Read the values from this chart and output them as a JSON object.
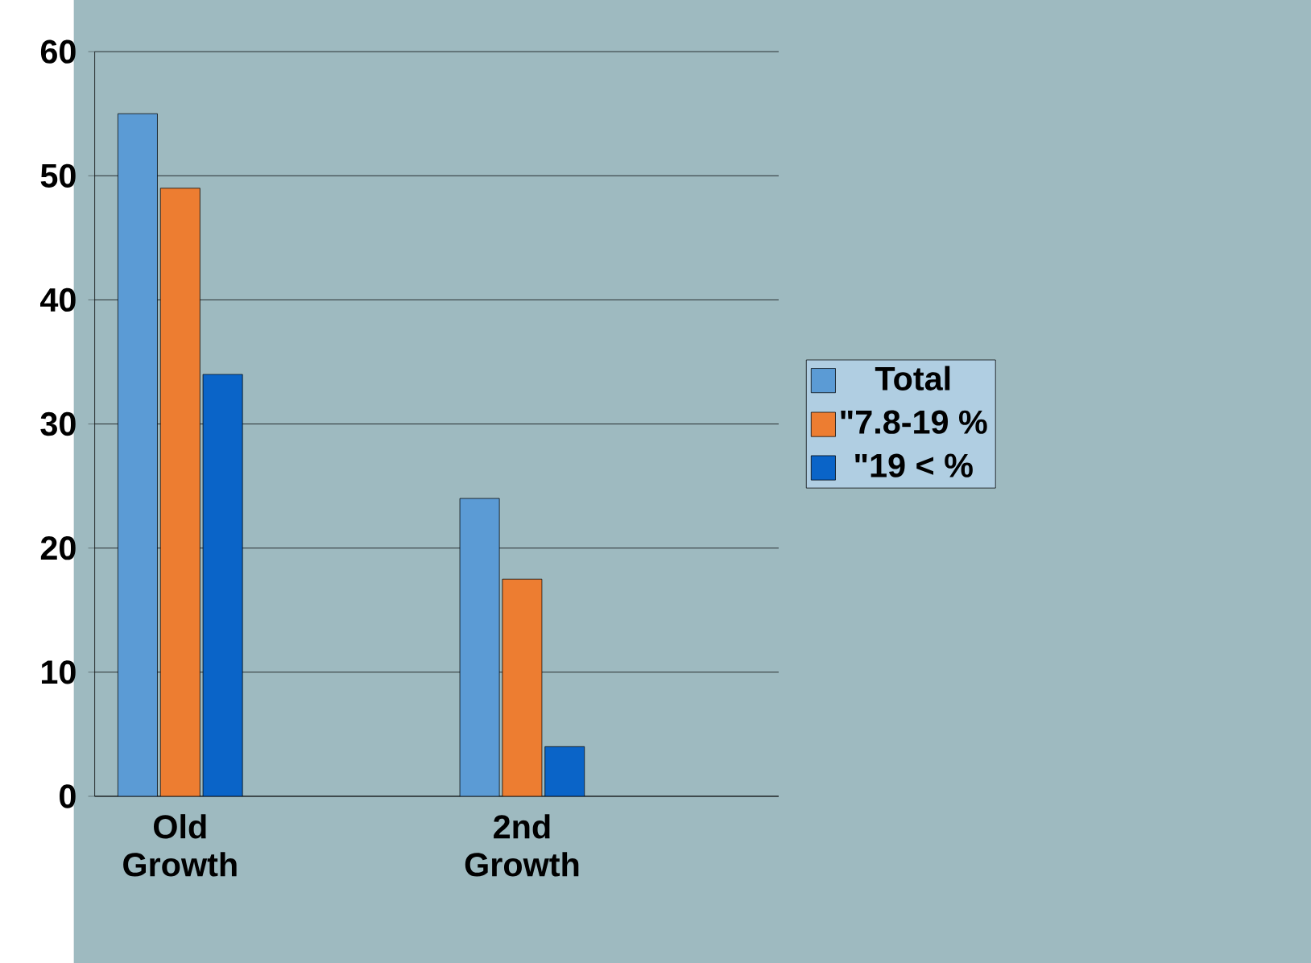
{
  "chart_data": {
    "type": "bar",
    "categories": [
      "Old Growth",
      null,
      "2nd Growth",
      null
    ],
    "series": [
      {
        "name": "Total",
        "color": "#5b9bd5",
        "values": [
          55,
          null,
          24,
          null
        ]
      },
      {
        "name": "\"7.8-19 %",
        "color": "#ed7d31",
        "values": [
          49,
          null,
          17.5,
          null
        ]
      },
      {
        "name": "\"19 < %",
        "color": "#0a64c8",
        "values": [
          34,
          null,
          4,
          null
        ]
      }
    ],
    "ylim": [
      0,
      60
    ],
    "yticks": [
      0,
      10,
      20,
      30,
      40,
      50,
      60
    ],
    "grid": "y",
    "legend": "right"
  }
}
